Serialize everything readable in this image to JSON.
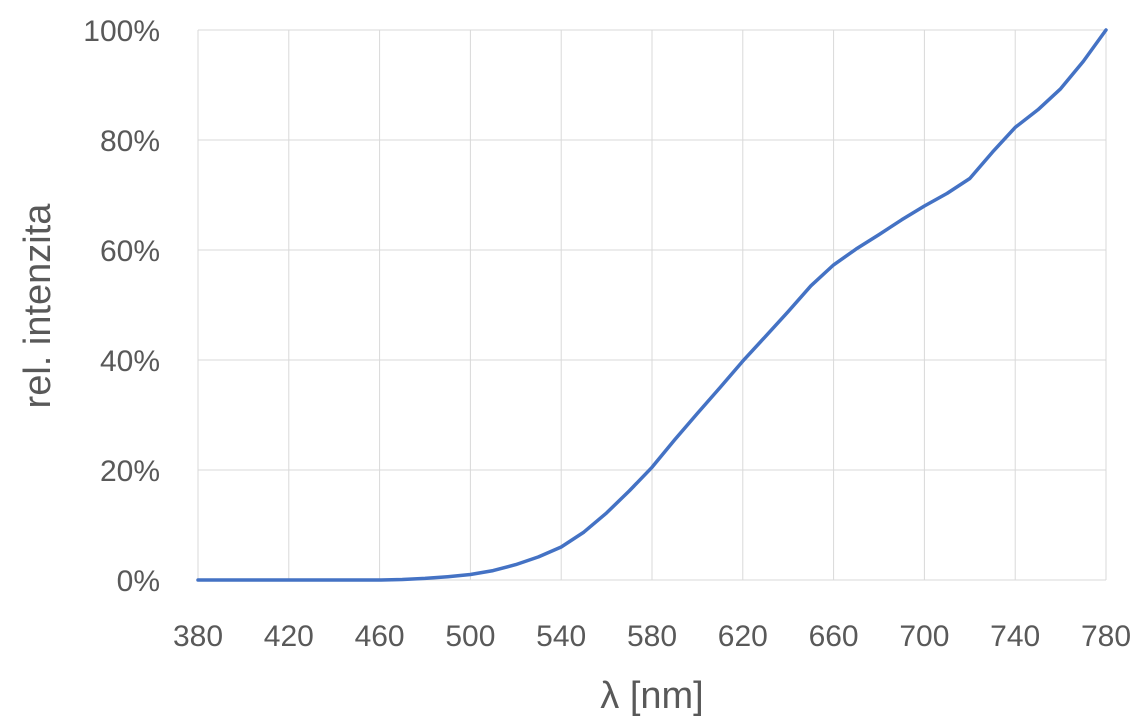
{
  "chart_data": {
    "type": "line",
    "xlabel": "λ [nm]",
    "ylabel": "rel. intenzita",
    "xlim": [
      380,
      780
    ],
    "ylim": [
      0,
      100
    ],
    "x_ticks": [
      380,
      420,
      460,
      500,
      540,
      580,
      620,
      660,
      700,
      740,
      780
    ],
    "y_ticks": [
      0,
      20,
      40,
      60,
      80,
      100
    ],
    "y_tick_labels": [
      "0%",
      "20%",
      "40%",
      "60%",
      "80%",
      "100%"
    ],
    "grid": true,
    "legend": "none",
    "series": [
      {
        "color": "#4472c4",
        "x": [
          380,
          400,
          420,
          440,
          460,
          470,
          480,
          490,
          500,
          510,
          520,
          530,
          540,
          550,
          560,
          570,
          580,
          590,
          600,
          610,
          620,
          630,
          640,
          650,
          660,
          670,
          680,
          690,
          700,
          710,
          720,
          730,
          740,
          750,
          760,
          770,
          780
        ],
        "y": [
          0,
          0,
          0,
          0,
          0,
          0.1,
          0.3,
          0.6,
          1.0,
          1.7,
          2.8,
          4.2,
          6.0,
          8.7,
          12.2,
          16.2,
          20.5,
          25.5,
          30.3,
          35.0,
          39.8,
          44.3,
          48.8,
          53.5,
          57.3,
          60.2,
          62.8,
          65.5,
          68.0,
          70.3,
          73.0,
          77.8,
          82.3,
          85.5,
          89.3,
          94.3,
          100
        ]
      }
    ]
  }
}
